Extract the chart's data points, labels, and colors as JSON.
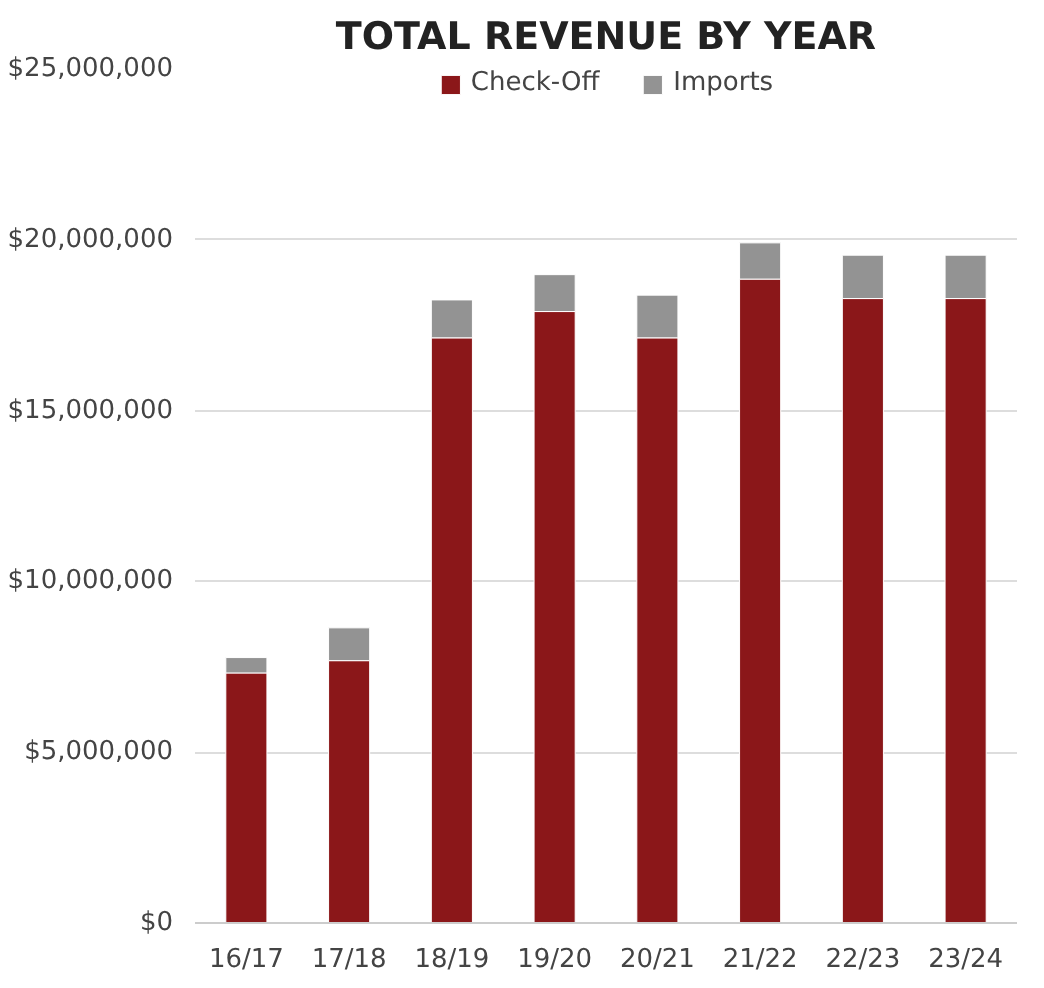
{
  "chart_data": {
    "type": "bar",
    "stacked": true,
    "title": "TOTAL REVENUE BY YEAR",
    "categories": [
      "16/17",
      "17/18",
      "18/19",
      "19/20",
      "20/21",
      "21/22",
      "22/23",
      "23/24"
    ],
    "series": [
      {
        "name": "Check-Off",
        "color": "#8b1719",
        "values": [
          7320000,
          7680000,
          17130000,
          17900000,
          17130000,
          18850000,
          18280000,
          18280000
        ]
      },
      {
        "name": "Imports",
        "color": "#939393",
        "values": [
          450000,
          960000,
          1110000,
          1080000,
          1250000,
          1060000,
          1270000,
          1270000
        ]
      }
    ],
    "ylim": [
      0,
      25000000
    ],
    "yticks": [
      {
        "value": 0,
        "label": "$0"
      },
      {
        "value": 5000000,
        "label": "$5,000,000"
      },
      {
        "value": 10000000,
        "label": "$10,000,000"
      },
      {
        "value": 15000000,
        "label": "$15,000,000"
      },
      {
        "value": 20000000,
        "label": "$20,000,000"
      },
      {
        "value": 25000000,
        "label": "$25,000,000"
      }
    ],
    "grid": "y",
    "legend": "top"
  }
}
